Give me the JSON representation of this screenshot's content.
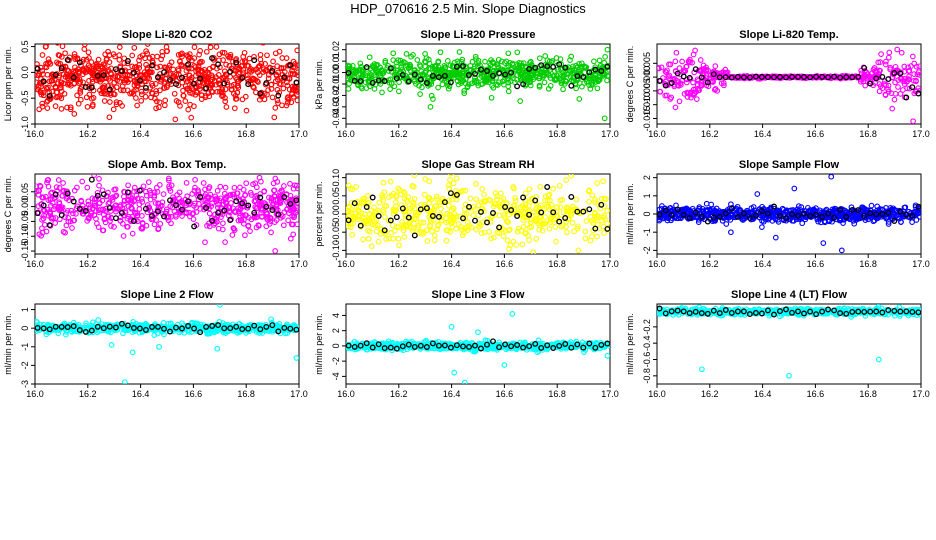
{
  "figure_title": "HDP_070616  2.5 Min. Slope Diagnostics",
  "chart_data": [
    {
      "type": "scatter",
      "title": "Slope Li-820 CO2",
      "xlabel": "",
      "ylabel": "Licor ppm per min.",
      "color": "#ff0000",
      "highlight_color": "#000000",
      "xlim": [
        16.0,
        17.0
      ],
      "ylim": [
        -1.0,
        0.55
      ],
      "xticks": [
        16.0,
        16.2,
        16.4,
        16.6,
        16.8,
        17.0
      ],
      "xtick_labels": [
        "16.0",
        "16.2",
        "16.4",
        "16.6",
        "16.8",
        "17.0"
      ],
      "yticks": [
        -1.0,
        -0.5,
        0.0,
        0.5
      ],
      "ytick_labels": [
        "-1.0",
        "-0.5",
        "0.0",
        "0.5"
      ],
      "n_points": 800,
      "band_center": -0.1,
      "band_spread": 0.28,
      "damp_middle": false,
      "outliers": []
    },
    {
      "type": "scatter",
      "title": "Slope Li-820 Pressure",
      "xlabel": "",
      "ylabel": "kPa per min.",
      "color": "#00cc00",
      "highlight_color": "#000000",
      "xlim": [
        16.0,
        17.0
      ],
      "ylim": [
        -0.045,
        0.025
      ],
      "xticks": [
        16.0,
        16.2,
        16.4,
        16.6,
        16.8,
        17.0
      ],
      "xtick_labels": [
        "16.0",
        "16.2",
        "16.4",
        "16.6",
        "16.8",
        "17.0"
      ],
      "yticks": [
        -0.04,
        -0.03,
        -0.02,
        -0.01,
        0.0,
        0.01,
        0.02
      ],
      "ytick_labels": [
        "-0.04",
        "-0.03",
        "-0.02",
        "-0.01",
        "0.00",
        "0.01",
        "0.02"
      ],
      "n_points": 700,
      "band_center": -0.001,
      "band_spread": 0.007,
      "damp_middle": false,
      "outliers": [
        [
          16.32,
          -0.03
        ],
        [
          16.66,
          -0.025
        ],
        [
          16.98,
          -0.04
        ],
        [
          16.99,
          0.02
        ],
        [
          16.43,
          0.018
        ]
      ]
    },
    {
      "type": "scatter",
      "title": "Slope Li-820 Temp.",
      "xlabel": "",
      "ylabel": "degrees C per min.",
      "color": "#ff00ff",
      "highlight_color": "#000000",
      "xlim": [
        16.0,
        17.0
      ],
      "ylim": [
        -0.017,
        0.012
      ],
      "xticks": [
        16.0,
        16.2,
        16.4,
        16.6,
        16.8,
        17.0
      ],
      "xtick_labels": [
        "16.0",
        "16.2",
        "16.4",
        "16.6",
        "16.8",
        "17.0"
      ],
      "yticks": [
        -0.015,
        -0.01,
        -0.005,
        0.0,
        0.005
      ],
      "ytick_labels": [
        "-0.015",
        "-0.010",
        "-0.005",
        "0.000",
        "0.005"
      ],
      "n_points": 550,
      "band_center": 0.0,
      "band_spread": 0.004,
      "damp_middle": true,
      "outliers": [
        [
          16.97,
          -0.016
        ],
        [
          16.07,
          -0.011
        ],
        [
          16.91,
          0.01
        ]
      ]
    },
    {
      "type": "scatter",
      "title": "Slope Amb. Box Temp.",
      "xlabel": "",
      "ylabel": "degrees C per min.",
      "color": "#ff00ff",
      "highlight_color": "#000000",
      "xlim": [
        16.0,
        17.0
      ],
      "ylim": [
        -0.16,
        0.11
      ],
      "xticks": [
        16.0,
        16.2,
        16.4,
        16.6,
        16.8,
        17.0
      ],
      "xtick_labels": [
        "16.0",
        "16.2",
        "16.4",
        "16.6",
        "16.8",
        "17.0"
      ],
      "yticks": [
        -0.15,
        -0.1,
        -0.05,
        0.0,
        0.05
      ],
      "ytick_labels": [
        "-0.15",
        "-0.10",
        "-0.05",
        "0.00",
        "0.05"
      ],
      "n_points": 650,
      "band_center": 0.0,
      "band_spread": 0.04,
      "damp_middle": false,
      "outliers": [
        [
          16.72,
          -0.12
        ],
        [
          16.91,
          -0.15
        ],
        [
          16.05,
          0.09
        ]
      ]
    },
    {
      "type": "scatter",
      "title": "Slope Gas Stream RH",
      "xlabel": "",
      "ylabel": "percent per min.",
      "color": "#ffff00",
      "highlight_color": "#000000",
      "xlim": [
        16.0,
        17.0
      ],
      "ylim": [
        -0.11,
        0.11
      ],
      "xticks": [
        16.0,
        16.2,
        16.4,
        16.6,
        16.8,
        17.0
      ],
      "xtick_labels": [
        "16.0",
        "16.2",
        "16.4",
        "16.6",
        "16.8",
        "17.0"
      ],
      "yticks": [
        -0.1,
        -0.05,
        0.0,
        0.05,
        0.1
      ],
      "ytick_labels": [
        "-0.10",
        "-0.05",
        "0.00",
        "0.05",
        "0.10"
      ],
      "n_points": 550,
      "band_center": 0.0,
      "band_spread": 0.04,
      "damp_middle": false,
      "outliers": [
        [
          16.71,
          -0.105
        ],
        [
          16.88,
          -0.1
        ]
      ]
    },
    {
      "type": "scatter",
      "title": "Slope Sample Flow",
      "xlabel": "",
      "ylabel": "ml/min per min.",
      "color": "#0000ff",
      "highlight_color": "#000000",
      "xlim": [
        16.0,
        17.0
      ],
      "ylim": [
        -2.2,
        2.2
      ],
      "xticks": [
        16.0,
        16.2,
        16.4,
        16.6,
        16.8,
        17.0
      ],
      "xtick_labels": [
        "16.0",
        "16.2",
        "16.4",
        "16.6",
        "16.8",
        "17.0"
      ],
      "yticks": [
        -2.0,
        -1.0,
        0.0,
        1.0,
        2.0
      ],
      "ytick_labels": [
        "-2",
        "-1",
        "0",
        "1",
        "2"
      ],
      "n_points": 700,
      "band_center": 0.0,
      "band_spread": 0.2,
      "damp_middle": false,
      "outliers": [
        [
          16.66,
          2.05
        ],
        [
          16.7,
          -2.0
        ],
        [
          16.45,
          -1.3
        ],
        [
          16.63,
          -1.6
        ],
        [
          16.52,
          1.4
        ],
        [
          16.38,
          1.1
        ],
        [
          16.28,
          -1.0
        ]
      ]
    },
    {
      "type": "scatter",
      "title": "Slope Line 2 Flow",
      "xlabel": "",
      "ylabel": "ml/min per min.",
      "color": "#00ffff",
      "highlight_color": "#000000",
      "xlim": [
        16.0,
        17.0
      ],
      "ylim": [
        -3.0,
        1.3
      ],
      "xticks": [
        16.0,
        16.2,
        16.4,
        16.6,
        16.8,
        17.0
      ],
      "xtick_labels": [
        "16.0",
        "16.2",
        "16.4",
        "16.6",
        "16.8",
        "17.0"
      ],
      "yticks": [
        -3.0,
        -2.0,
        -1.0,
        0.0,
        1.0
      ],
      "ytick_labels": [
        "-3",
        "-2",
        "-1",
        "0",
        "1"
      ],
      "n_points": 650,
      "band_center": 0.0,
      "band_spread": 0.12,
      "damp_middle": false,
      "outliers": [
        [
          16.34,
          -2.9
        ],
        [
          16.7,
          1.25
        ],
        [
          16.47,
          -1.0
        ],
        [
          16.37,
          -1.3
        ],
        [
          16.99,
          -1.6
        ],
        [
          16.69,
          -1.1
        ],
        [
          16.29,
          -0.9
        ]
      ]
    },
    {
      "type": "scatter",
      "title": "Slope Line 3 Flow",
      "xlabel": "",
      "ylabel": "ml/min per min.",
      "color": "#00ffff",
      "highlight_color": "#000000",
      "xlim": [
        16.0,
        17.0
      ],
      "ylim": [
        -5.0,
        5.5
      ],
      "xticks": [
        16.0,
        16.2,
        16.4,
        16.6,
        16.8,
        17.0
      ],
      "xtick_labels": [
        "16.0",
        "16.2",
        "16.4",
        "16.6",
        "16.8",
        "17.0"
      ],
      "yticks": [
        -4.0,
        -2.0,
        0.0,
        2.0,
        4.0
      ],
      "ytick_labels": [
        "-4",
        "-2",
        "0",
        "2",
        "4"
      ],
      "n_points": 600,
      "band_center": 0.0,
      "band_spread": 0.25,
      "damp_middle": false,
      "outliers": [
        [
          16.45,
          -4.8
        ],
        [
          16.41,
          -3.5
        ],
        [
          16.63,
          4.2
        ],
        [
          16.4,
          2.5
        ],
        [
          16.6,
          -2.5
        ],
        [
          16.5,
          1.8
        ],
        [
          16.99,
          -1.3
        ]
      ]
    },
    {
      "type": "scatter",
      "title": "Slope Line 4 (LT) Flow",
      "xlabel": "",
      "ylabel": "ml/min per min.",
      "color": "#00ffff",
      "highlight_color": "#000000",
      "xlim": [
        16.0,
        17.0
      ],
      "ylim": [
        -0.9,
        0.08
      ],
      "xticks": [
        16.0,
        16.2,
        16.4,
        16.6,
        16.8,
        17.0
      ],
      "xtick_labels": [
        "16.0",
        "16.2",
        "16.4",
        "16.6",
        "16.8",
        "17.0"
      ],
      "yticks": [
        -0.8,
        -0.6,
        -0.4,
        -0.2
      ],
      "ytick_labels": [
        "-0.8",
        "-0.6",
        "-0.4",
        "-0.2"
      ],
      "n_points": 600,
      "band_center": -0.015,
      "band_spread": 0.02,
      "damp_middle": false,
      "outliers": [
        [
          16.17,
          -0.72
        ],
        [
          16.5,
          -0.8
        ],
        [
          16.84,
          -0.6
        ]
      ]
    }
  ]
}
